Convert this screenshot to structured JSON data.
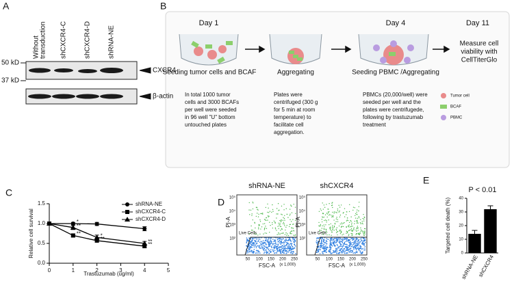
{
  "panel_labels": [
    "A",
    "B",
    "C",
    "D",
    "E"
  ],
  "blot": {
    "lanes": [
      [
        "Without",
        "transduction"
      ],
      [
        "shCXCR4-C"
      ],
      [
        "shCXCR4-D"
      ],
      [
        "shRNA-NE"
      ]
    ],
    "markers": [
      "50 kD",
      "37 kD"
    ],
    "bands": [
      "CXCR4",
      "β-actin"
    ]
  },
  "schematic": {
    "days": [
      "Day 1",
      "Day 4",
      "Day 11"
    ],
    "final_step": [
      "Measure cell",
      "viability with",
      "CellTiterGlo"
    ],
    "steps": [
      "Seeding tumor cells and BCAF",
      "Aggregating",
      "Seeding PBMC /Aggregating"
    ],
    "descriptions": [
      [
        "In total 1000 tumor",
        "cells and 3000 BCAFs",
        "per well were seeded",
        "in 96 well \"U\" bottom",
        "untouched plates"
      ],
      [
        "Plates were",
        "centrifuged (300 g",
        "for 5 min at room",
        "temperature) to",
        "facilitate cell",
        "aggregation."
      ],
      [
        "PBMCs (20,000/well) were",
        "seeded per well and the",
        "plates were centrifugede,",
        "following by  trastuzumab",
        "treatment"
      ]
    ],
    "legend": [
      "Tumor cell",
      "BCAF",
      "PBMC"
    ]
  },
  "flow": {
    "titles": [
      "shRNA-NE",
      "shCXCR4"
    ],
    "x_label": "FSC-A",
    "y_label": "PI-A",
    "gate_label": "Live Cells",
    "x_unit": "(x 1,000)",
    "x_ticks": [
      "50",
      "100",
      "150",
      "200",
      "250"
    ],
    "y_ticks": [
      "10⁵",
      "10⁴",
      "10³",
      "10²"
    ]
  },
  "chart_data": [
    {
      "type": "line",
      "x_label": "Trastuzumab (ug/ml)",
      "y_label": "Relative cell survival",
      "x": [
        0,
        1,
        2,
        4
      ],
      "xlim": [
        0,
        5
      ],
      "xticks": [
        0,
        1,
        2,
        3,
        4,
        5
      ],
      "ylim": [
        0,
        1.5
      ],
      "yticks": [
        {
          "value": 0,
          "label": "0.0"
        },
        {
          "value": 0.5,
          "label": "0.5"
        },
        {
          "value": 1,
          "label": "1.0"
        },
        {
          "value": 1.5,
          "label": "1.5"
        }
      ],
      "legend": "upper right",
      "series": [
        {
          "name": "shRNA-NE",
          "color": "#000000",
          "marker": "circle",
          "values": [
            1,
            1,
            0.99,
            0.87
          ],
          "errors": [
            0,
            0.03,
            0.04,
            0.05
          ],
          "point_labels": [
            null,
            "*",
            null,
            null
          ]
        },
        {
          "name": "shCXCR4-C",
          "color": "#000000",
          "marker": "square",
          "values": [
            1,
            0.7,
            0.57,
            0.43
          ],
          "errors": [
            0,
            0.04,
            0.03,
            0.04
          ],
          "point_labels": [
            null,
            "**",
            "**",
            "**"
          ]
        },
        {
          "name": "shCXCR4-D",
          "color": "#000000",
          "marker": "triangle",
          "values": [
            1,
            0.9,
            0.65,
            0.5
          ],
          "errors": [
            0,
            0.05,
            0.06,
            0.05
          ],
          "point_labels": [
            null,
            "**",
            "*",
            "**"
          ]
        }
      ]
    },
    {
      "type": "bar",
      "y_label": "Targeted cell death (%)",
      "annotation": "P < 0.01",
      "categories": [
        "shRNA-NE",
        "shCXCR4"
      ],
      "values": [
        14,
        32
      ],
      "errors": [
        2.5,
        2.5
      ],
      "color": "#000000",
      "ylim": [
        0,
        40
      ],
      "yticks": [
        0,
        10,
        20,
        30,
        40
      ]
    }
  ]
}
